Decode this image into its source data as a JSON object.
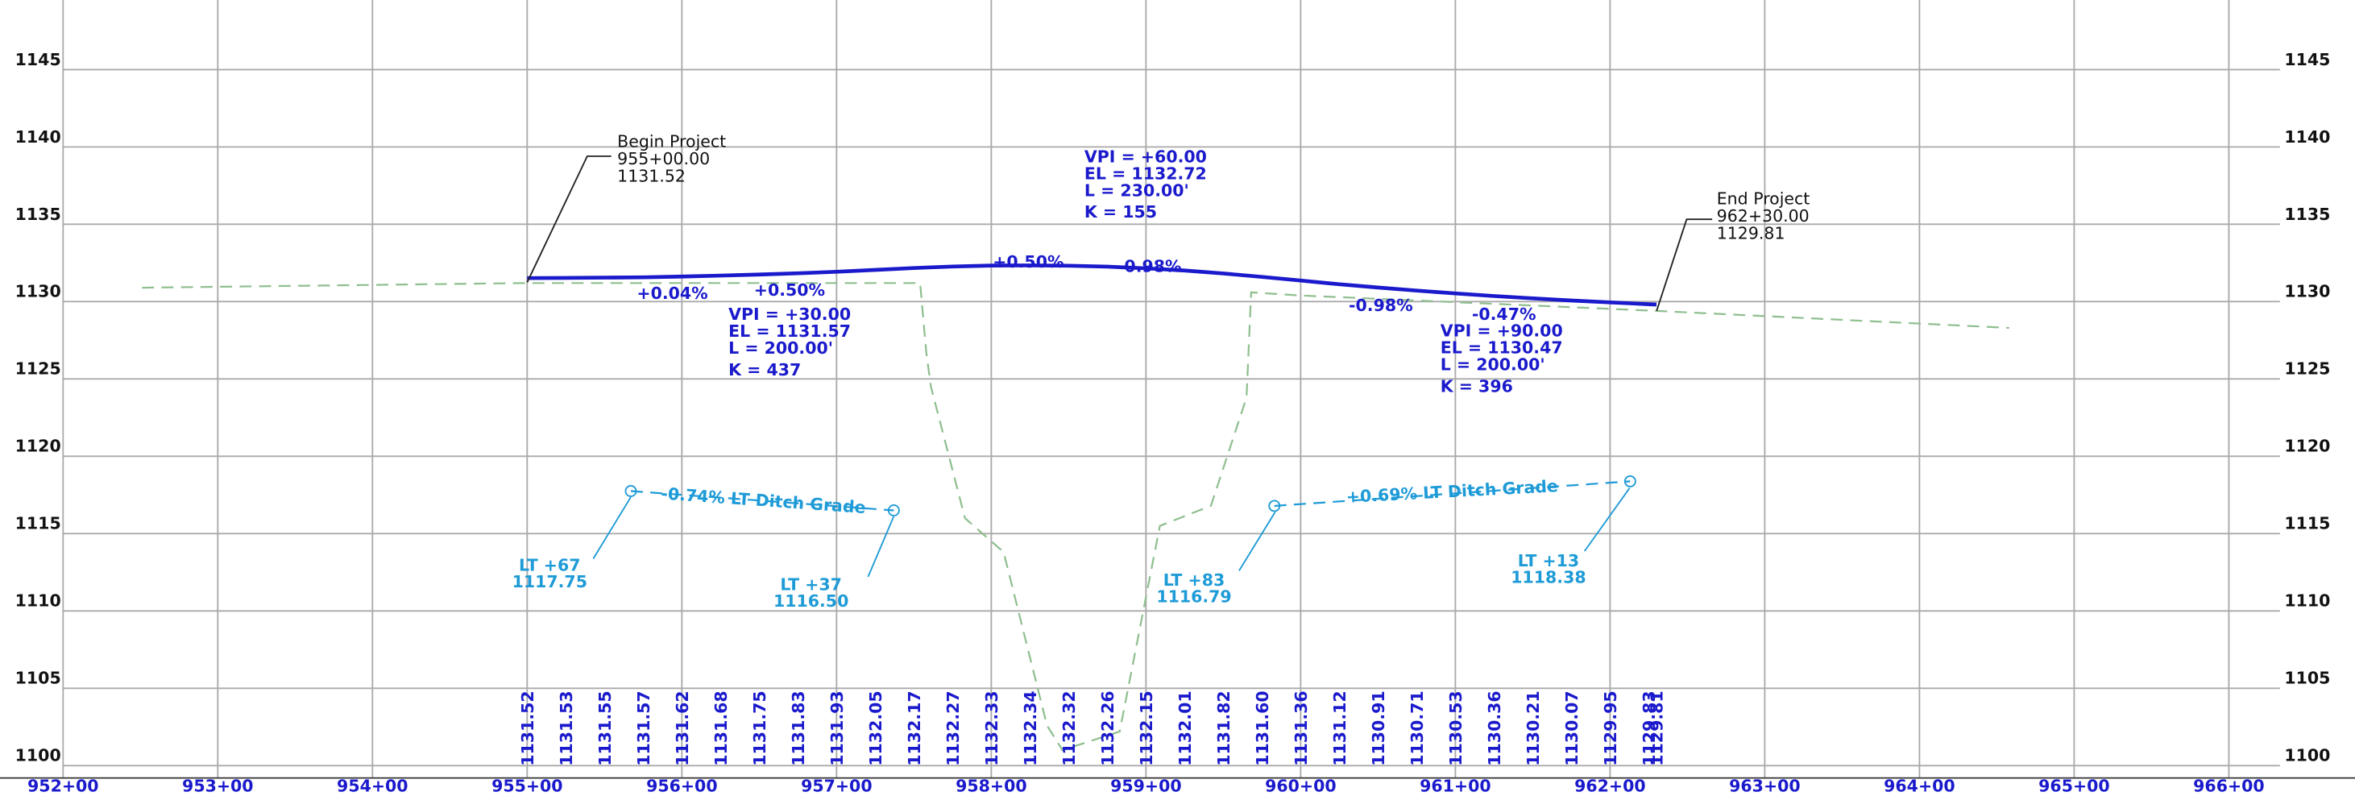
{
  "chart_data": {
    "type": "line",
    "xlim": [
      95200,
      96633
    ],
    "ylim": [
      1099.2,
      1149.5
    ],
    "grid": true,
    "xticks": [
      {
        "value": 95200,
        "label": "952+00"
      },
      {
        "value": 95300,
        "label": "953+00"
      },
      {
        "value": 95400,
        "label": "954+00"
      },
      {
        "value": 95500,
        "label": "955+00"
      },
      {
        "value": 95600,
        "label": "956+00"
      },
      {
        "value": 95700,
        "label": "957+00"
      },
      {
        "value": 95800,
        "label": "958+00"
      },
      {
        "value": 95900,
        "label": "959+00"
      },
      {
        "value": 96000,
        "label": "960+00"
      },
      {
        "value": 96100,
        "label": "961+00"
      },
      {
        "value": 96200,
        "label": "962+00"
      },
      {
        "value": 96300,
        "label": "963+00"
      },
      {
        "value": 96400,
        "label": "964+00"
      },
      {
        "value": 96500,
        "label": "965+00"
      },
      {
        "value": 96600,
        "label": "966+00"
      }
    ],
    "yticks": [
      1100,
      1105,
      1110,
      1115,
      1120,
      1125,
      1130,
      1135,
      1140,
      1145
    ],
    "series": [
      {
        "color": "#8fbf8f",
        "dashed": true,
        "x": [
          95251,
          95500,
          95754,
          95758,
          95761,
          95783,
          95808,
          95836,
          95846,
          95883,
          95909,
          95942,
          95965,
          95968,
          95999,
          96230,
          96458
        ],
        "values": [
          1130.9,
          1131.2,
          1131.2,
          1126.7,
          1124.5,
          1116.0,
          1113.8,
          1102.6,
          1101.0,
          1102.2,
          1115.5,
          1116.8,
          1123.8,
          1130.6,
          1130.4,
          1129.4,
          1128.3
        ]
      },
      {
        "color": "#1a1acc",
        "dashed": false,
        "x": [
          95500,
          95525,
          95550,
          95575,
          95600,
          95625,
          95650,
          95675,
          95700,
          95725,
          95750,
          95775,
          95800,
          95825,
          95850,
          95875,
          95900,
          95925,
          95950,
          95975,
          96000,
          96025,
          96050,
          96075,
          96100,
          96125,
          96150,
          96175,
          96200,
          96225,
          96230
        ],
        "values": [
          1131.52,
          1131.53,
          1131.55,
          1131.57,
          1131.62,
          1131.68,
          1131.75,
          1131.83,
          1131.93,
          1132.05,
          1132.17,
          1132.27,
          1132.33,
          1132.34,
          1132.32,
          1132.26,
          1132.15,
          1132.01,
          1131.82,
          1131.6,
          1131.36,
          1131.12,
          1130.91,
          1130.71,
          1130.53,
          1130.36,
          1130.21,
          1130.07,
          1129.95,
          1129.83,
          1129.81
        ],
        "value_labels": [
          "1131.52",
          "1131.53",
          "1131.55",
          "1131.57",
          "1131.62",
          "1131.68",
          "1131.75",
          "1131.83",
          "1131.93",
          "1132.05",
          "1132.17",
          "1132.27",
          "1132.33",
          "1132.34",
          "1132.32",
          "1132.26",
          "1132.15",
          "1132.01",
          "1131.82",
          "1131.60",
          "1131.36",
          "1131.12",
          "1130.91",
          "1130.71",
          "1130.53",
          "1130.36",
          "1130.21",
          "1130.07",
          "1129.95",
          "1129.83",
          "1129.81"
        ]
      },
      {
        "color": "#1e9bd7",
        "dashed": true,
        "x": [
          95567,
          95737
        ],
        "values": [
          1117.75,
          1116.5
        ]
      },
      {
        "color": "#1e9bd7",
        "dashed": true,
        "x": [
          95983,
          96213
        ],
        "values": [
          1116.79,
          1118.38
        ]
      }
    ],
    "project_labels": [
      [
        "Begin Project",
        "955+00.00",
        "1131.52"
      ],
      [
        "End Project",
        "962+30.00",
        "1129.81"
      ]
    ],
    "vpi_labels": [
      [
        "VPI = +60.00",
        "EL = 1132.72",
        "L = 230.00'",
        "K = 155"
      ],
      [
        "VPI = +30.00",
        "EL = 1131.57",
        "L = 200.00'",
        "K = 437"
      ],
      [
        "VPI = +90.00",
        "EL = 1130.47",
        "L = 200.00'",
        "K = 396"
      ]
    ],
    "grade_labels": [
      "+0.04%",
      "+0.50%",
      "+0.50%",
      "-0.98%",
      "-0.98%",
      "-0.47%"
    ],
    "ditch_grades": [
      "-0.74% LT Ditch Grade",
      "+0.69% LT Ditch Grade"
    ],
    "ditch_labels": [
      [
        "LT +67",
        "1117.75"
      ],
      [
        "LT +37",
        "1116.50"
      ],
      [
        "LT +83",
        "1116.79"
      ],
      [
        "LT +13",
        "1118.38"
      ]
    ]
  }
}
